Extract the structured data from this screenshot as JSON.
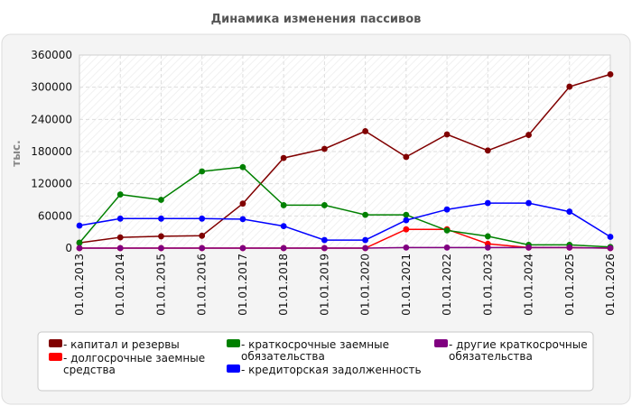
{
  "chart_data": {
    "type": "line",
    "title": "Динамика изменения пассивов",
    "ylabel": "тыс.",
    "xlabel": "",
    "ylim": [
      0,
      360000
    ],
    "yticks": [
      0,
      60000,
      120000,
      180000,
      240000,
      300000,
      360000
    ],
    "grid": true,
    "legend_position": "bottom",
    "categories": [
      "01.01.2013",
      "01.01.2014",
      "01.01.2015",
      "01.01.2016",
      "01.01.2017",
      "01.01.2018",
      "01.01.2019",
      "01.01.2020",
      "01.01.2021",
      "01.01.2022",
      "01.01.2023",
      "01.01.2024",
      "01.01.2025",
      "01.01.2026"
    ],
    "series": [
      {
        "name": "капитал и резервы",
        "color": "#800000",
        "values": [
          10000,
          20000,
          22000,
          23000,
          83000,
          168000,
          185000,
          218000,
          170000,
          212000,
          182000,
          211000,
          301000,
          324000
        ]
      },
      {
        "name": "долгосрочные заемные средства",
        "color": "#ff0000",
        "values": [
          0,
          0,
          0,
          0,
          0,
          0,
          0,
          0,
          35000,
          35000,
          8000,
          1000,
          1000,
          0
        ]
      },
      {
        "name": "краткосрочные заемные обязательства",
        "color": "#008000",
        "values": [
          10000,
          100000,
          90000,
          143000,
          151000,
          80000,
          80000,
          62000,
          62000,
          33000,
          22000,
          6000,
          6000,
          2000
        ]
      },
      {
        "name": "кредиторская задолженность",
        "color": "#0000ff",
        "values": [
          42000,
          55000,
          55000,
          55000,
          54000,
          41000,
          15000,
          15000,
          52000,
          72000,
          84000,
          84000,
          68000,
          21000
        ]
      },
      {
        "name": "другие краткосрочные обязательства",
        "color": "#800080",
        "values": [
          0,
          0,
          0,
          0,
          0,
          0,
          0,
          0,
          1000,
          1000,
          1000,
          1000,
          1000,
          0
        ]
      }
    ],
    "legend_order": [
      {
        "series": 0,
        "lines": [
          "- капитал и резервы"
        ]
      },
      {
        "series": 1,
        "lines": [
          "- долгосрочные заемные",
          "средства"
        ]
      },
      {
        "series": 2,
        "lines": [
          "- краткосрочные заемные",
          "обязательства"
        ]
      },
      {
        "series": 3,
        "lines": [
          "- кредиторская задолженность"
        ]
      },
      {
        "series": 4,
        "lines": [
          "- другие краткосрочные",
          "обязательства"
        ]
      }
    ]
  }
}
